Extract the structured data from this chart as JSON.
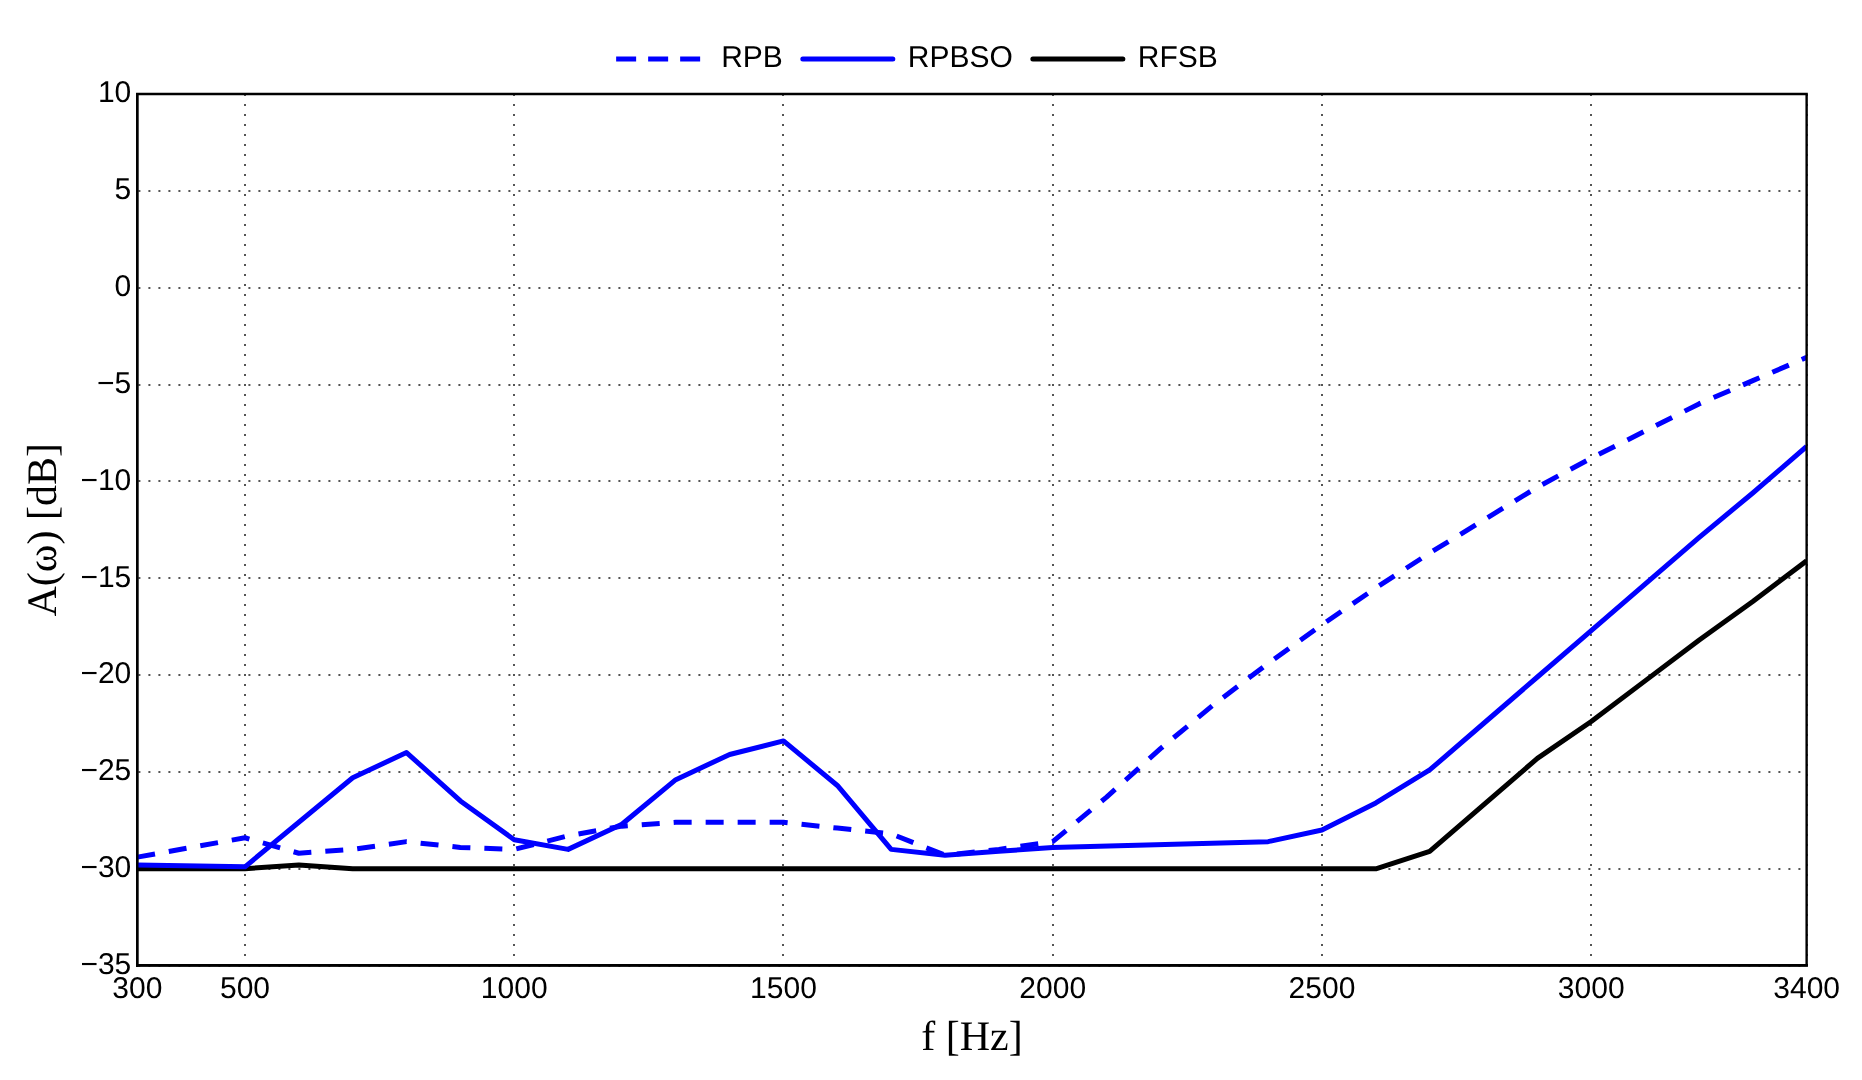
{
  "chart_data": {
    "type": "line",
    "xlabel": "f [Hz]",
    "ylabel": "A(ω) [dB]",
    "xlim": [
      300,
      3400
    ],
    "xticks": [
      300,
      500,
      1000,
      1500,
      2000,
      2500,
      3000,
      3400
    ],
    "ylim": [
      -35,
      10
    ],
    "yticks": [
      -35,
      -30,
      -25,
      -20,
      -15,
      -10,
      -5,
      0,
      5,
      10
    ],
    "grid": true,
    "legend": "top",
    "marker": "none",
    "series": [
      {
        "name": "RPB",
        "color": "#0000ff",
        "line_style": "dashed",
        "x": [
          300,
          500,
          600,
          700,
          800,
          900,
          1000,
          1100,
          1200,
          1300,
          1400,
          1500,
          1600,
          1700,
          1800,
          1900,
          2000,
          2100,
          2200,
          2300,
          2400,
          2500,
          2600,
          2700,
          2800,
          2900,
          3000,
          3100,
          3200,
          3300,
          3400
        ],
        "values": [
          -29.4,
          -28.4,
          -29.2,
          -29.0,
          -28.6,
          -28.9,
          -29.0,
          -28.3,
          -27.8,
          -27.6,
          -27.6,
          -27.6,
          -27.9,
          -28.2,
          -29.3,
          -29.0,
          -28.6,
          -26.3,
          -23.8,
          -21.5,
          -19.4,
          -17.4,
          -15.5,
          -13.7,
          -12.0,
          -10.3,
          -8.8,
          -7.4,
          -6.0,
          -4.8,
          -3.6
        ]
      },
      {
        "name": "RPBSO",
        "color": "#0000ff",
        "line_style": "solid",
        "x": [
          300,
          500,
          700,
          800,
          900,
          1000,
          1100,
          1200,
          1300,
          1400,
          1500,
          1600,
          1700,
          1800,
          1900,
          2000,
          2400,
          2500,
          2600,
          2700,
          2800,
          2900,
          3000,
          3100,
          3200,
          3300,
          3400
        ],
        "values": [
          -29.8,
          -29.9,
          -25.3,
          -24.0,
          -26.5,
          -28.5,
          -29.0,
          -27.7,
          -25.4,
          -24.1,
          -23.4,
          -25.7,
          -29.0,
          -29.3,
          -29.1,
          -28.9,
          -28.6,
          -28.0,
          -26.6,
          -24.9,
          -22.5,
          -20.1,
          -17.7,
          -15.3,
          -12.9,
          -10.6,
          -8.2
        ]
      },
      {
        "name": "RFSB",
        "color": "#000000",
        "line_style": "solid",
        "x": [
          300,
          500,
          600,
          700,
          800,
          900,
          1000,
          1500,
          2000,
          2500,
          2600,
          2700,
          2800,
          2900,
          3000,
          3100,
          3200,
          3300,
          3400
        ],
        "values": [
          -30.0,
          -30.0,
          -29.8,
          -30.0,
          -30.0,
          -30.0,
          -30.0,
          -30.0,
          -30.0,
          -30.0,
          -30.0,
          -29.1,
          -26.7,
          -24.3,
          -22.4,
          -20.3,
          -18.2,
          -16.2,
          -14.1
        ]
      }
    ]
  }
}
